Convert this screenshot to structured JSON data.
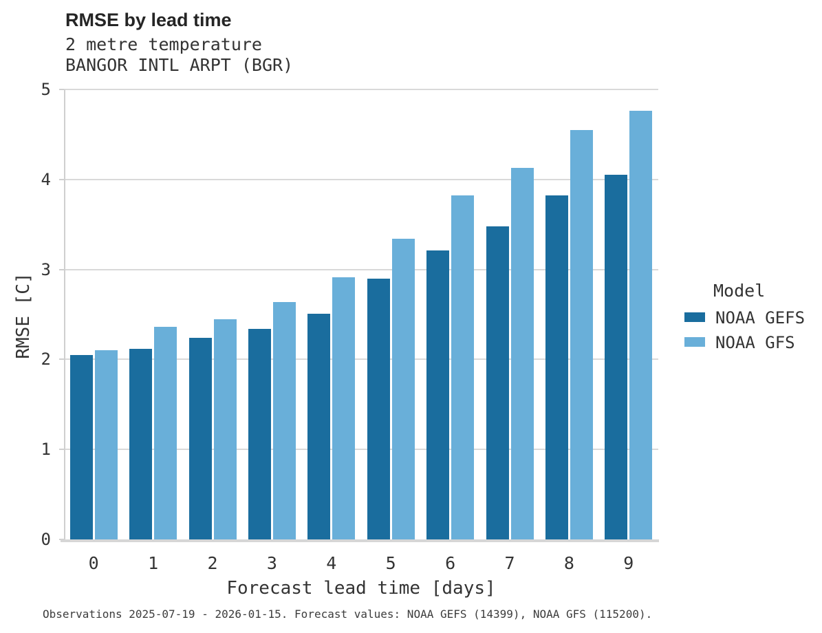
{
  "header": {
    "title": "RMSE by lead time",
    "subtitle_line1": "2 metre temperature",
    "subtitle_line2": "BANGOR INTL ARPT (BGR)"
  },
  "legend": {
    "title": "Model"
  },
  "footer": {
    "caption": "Observations 2025-07-19 - 2026-01-15. Forecast values: NOAA GEFS (14399), NOAA GFS (115200)."
  },
  "colors": {
    "gefs_bar": "#1a6d9e",
    "gfs_bar": "#69afd9",
    "gridline": "#d9d9d9",
    "spine": "#cfcfcf",
    "text": "#333333"
  },
  "chart_data": {
    "type": "bar",
    "title": "RMSE by lead time",
    "subtitle": [
      "2 metre temperature",
      "BANGOR INTL ARPT (BGR)"
    ],
    "xlabel": "Forecast lead time [days]",
    "ylabel": "RMSE [C]",
    "categories": [
      "0",
      "1",
      "2",
      "3",
      "4",
      "5",
      "6",
      "7",
      "8",
      "9"
    ],
    "yticks": [
      0,
      1,
      2,
      3,
      4,
      5
    ],
    "ylim": [
      0,
      5
    ],
    "grid": "horizontal",
    "legend_title": "Model",
    "legend_position": "right",
    "series": [
      {
        "name": "NOAA GEFS",
        "color": "#1a6d9e",
        "values": [
          2.05,
          2.12,
          2.24,
          2.34,
          2.51,
          2.9,
          3.21,
          3.48,
          3.82,
          4.05
        ]
      },
      {
        "name": "NOAA GFS",
        "color": "#69afd9",
        "values": [
          2.1,
          2.36,
          2.45,
          2.64,
          2.91,
          3.34,
          3.82,
          4.13,
          4.55,
          4.76
        ]
      }
    ]
  }
}
